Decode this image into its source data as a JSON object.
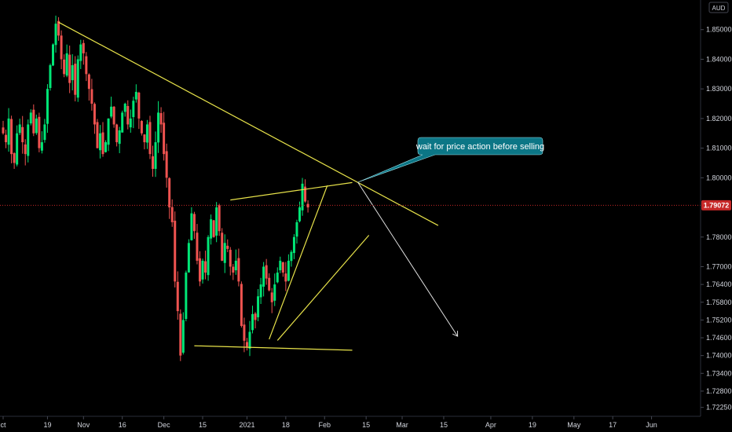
{
  "chart_data": {
    "type": "candlestick",
    "title": "",
    "currency": "AUD",
    "last_price": "1.79072",
    "ylim": [
      1.7195,
      1.86
    ],
    "y_ticks": [
      "1.85000",
      "1.84000",
      "1.83000",
      "1.82000",
      "1.81000",
      "1.80000",
      "1.78000",
      "1.77000",
      "1.76400",
      "1.75800",
      "1.75200",
      "1.74600",
      "1.74000",
      "1.73400",
      "1.72800",
      "1.72250"
    ],
    "x_ticks": [
      "ct",
      "19",
      "Nov",
      "16",
      "Dec",
      "15",
      "2021",
      "18",
      "Feb",
      "15",
      "Mar",
      "15",
      "Apr",
      "19",
      "May",
      "17",
      "Jun"
    ],
    "x_day_range": [
      0,
      250
    ],
    "x_tick_days": [
      0,
      16,
      29,
      43,
      58,
      72,
      88,
      102,
      116,
      131,
      144,
      159,
      176,
      191,
      206,
      220,
      234
    ],
    "annotation": "wait for price action before selling",
    "colors": {
      "up": "#26a69a",
      "down": "#ef5350",
      "bright_up": "#00e676",
      "trendline": "#e8e34a",
      "projection": "#e0e0e0",
      "callout": "#0c7686",
      "last_price": "#c62828"
    },
    "series": [
      {
        "values_close": [
          1.815,
          1.812,
          1.82,
          1.808,
          1.805,
          1.815,
          1.818,
          1.812,
          1.808,
          1.818,
          1.822,
          1.815,
          1.82,
          1.81,
          1.812,
          1.818,
          1.83,
          1.838,
          1.845,
          1.852,
          1.848,
          1.84,
          1.835,
          1.842,
          1.832,
          1.838,
          1.828,
          1.84,
          1.845,
          1.842,
          1.835,
          1.83,
          1.825,
          1.818,
          1.81,
          1.815,
          1.808,
          1.812,
          1.82,
          1.824,
          1.818,
          1.812,
          1.816,
          1.822,
          1.825,
          1.818,
          1.82,
          1.826,
          1.829,
          1.82,
          1.815,
          1.812,
          1.818,
          1.808,
          1.803,
          1.812,
          1.822,
          1.818,
          1.808,
          1.8,
          1.79,
          1.785,
          1.765,
          1.755,
          1.74,
          1.752,
          1.768,
          1.778,
          1.788,
          1.782,
          1.772,
          1.765,
          1.772,
          1.768,
          1.78,
          1.786,
          1.78,
          1.79,
          1.782,
          1.772,
          1.778,
          1.776,
          1.77,
          1.768,
          1.772,
          1.765,
          1.75,
          1.745,
          1.743,
          1.748,
          1.754,
          1.752,
          1.76,
          1.764,
          1.77,
          1.766,
          1.762,
          1.758,
          1.764,
          1.768,
          1.772,
          1.768,
          1.765,
          1.772,
          1.775,
          1.78,
          1.785,
          1.79,
          1.798,
          1.792,
          1.79
        ]
      }
    ],
    "trendlines": [
      {
        "label": "descending-resistance",
        "from": [
          20,
          1.8525
        ],
        "to": [
          157,
          1.7839
        ]
      },
      {
        "label": "upper-channel",
        "from": [
          82,
          1.7925
        ],
        "to": [
          126,
          1.7984
        ]
      },
      {
        "label": "base-support",
        "from": [
          69,
          1.7433
        ],
        "to": [
          126,
          1.7418
        ]
      },
      {
        "label": "rising-wedge-lower",
        "from": [
          99,
          1.7451
        ],
        "to": [
          132,
          1.7806
        ]
      },
      {
        "label": "rising-wedge-upper",
        "from": [
          96,
          1.7455
        ],
        "to": [
          117,
          1.7974
        ]
      }
    ],
    "projection": {
      "from": [
        128,
        1.7985
      ],
      "to": [
        164,
        1.7465
      ]
    }
  }
}
